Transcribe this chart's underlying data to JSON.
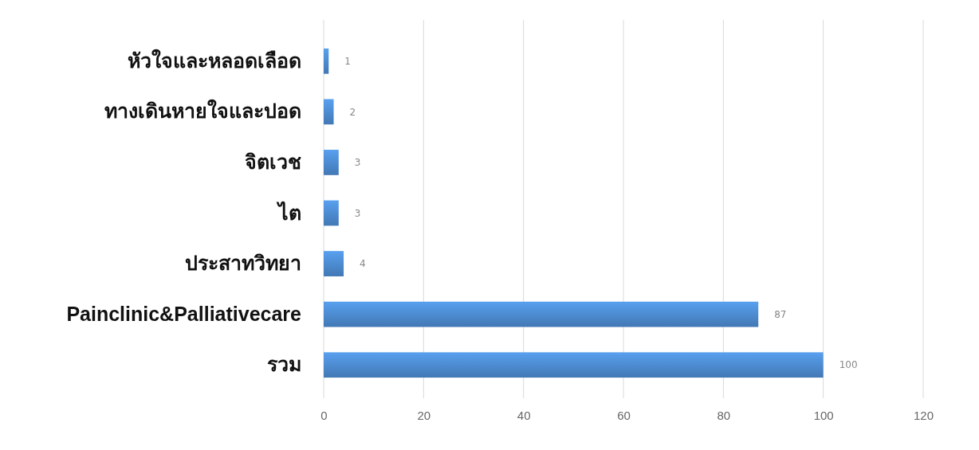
{
  "chart_data": {
    "type": "bar",
    "orientation": "horizontal",
    "categories": [
      "หัวใจและหลอดเลือด",
      "ทางเดินหายใจและปอด",
      "จิตเวช",
      "ไต",
      "ประสาทวิทยา",
      "Painclinic&Palliativecare",
      "รวม"
    ],
    "values": [
      1,
      2,
      3,
      3,
      4,
      87,
      100
    ],
    "color": "#4a86c8",
    "xlim": [
      0,
      120
    ],
    "xticks": [
      0,
      20,
      40,
      60,
      80,
      100,
      120
    ],
    "grid": "x",
    "data_labels": true
  }
}
